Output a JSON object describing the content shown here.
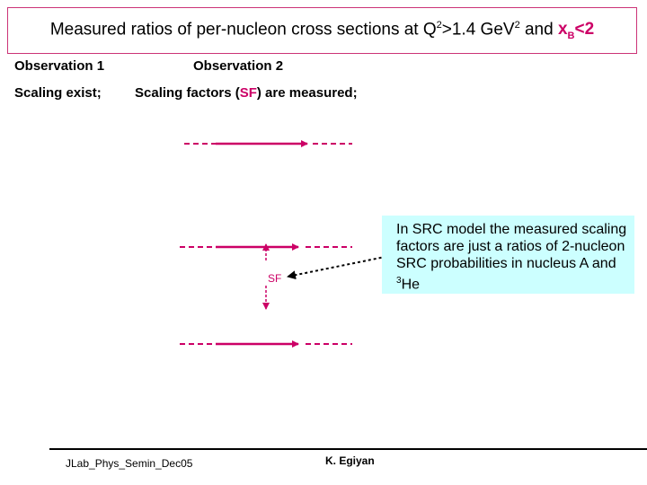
{
  "title": {
    "part1": "Measured ratios of per-nucleon cross sections at Q",
    "sup1": "2",
    "part2": ">1.4 GeV",
    "sup2": "2",
    "part3": " and ",
    "xb_main": "x",
    "xb_sub": "B",
    "xb_tail": "<2"
  },
  "observation1": {
    "heading": "Observation 1",
    "text": "Scaling exist;"
  },
  "observation2": {
    "heading": "Observation 2",
    "text_before": "Scaling factors (",
    "text_sf": "SF",
    "text_after": ") are measured;"
  },
  "diagram": {
    "sf_label": "SF"
  },
  "callout": {
    "text_main": "In SRC model the measured scaling factors are just a ratios of 2-nucleon SRC probabilities in nucleus A and ",
    "sup": "3",
    "tail": "He"
  },
  "footer": {
    "left": "JLab_Phys_Semin_Dec05",
    "center": "K. Egiyan"
  },
  "colors": {
    "accent": "#cc0066",
    "callout_bg": "#ccffff",
    "title_border": "#cc3377"
  }
}
